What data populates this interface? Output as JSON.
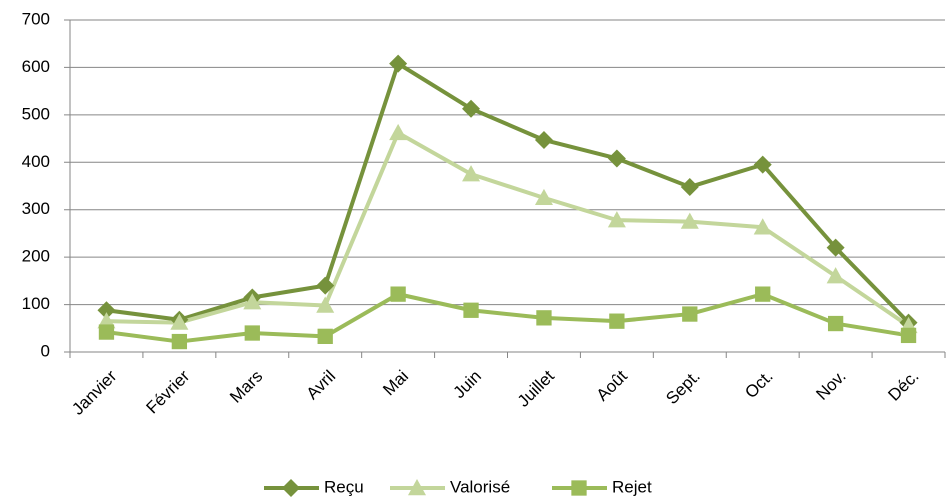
{
  "chart_data": {
    "type": "line",
    "categories": [
      "Janvier",
      "Février",
      "Mars",
      "Avril",
      "Mai",
      "Juin",
      "Juillet",
      "Août",
      "Sept.",
      "Oct.",
      "Nov.",
      "Déc."
    ],
    "series": [
      {
        "name": "Reçu",
        "color": "#76923c",
        "marker": "diamond",
        "values": [
          88,
          68,
          115,
          140,
          608,
          513,
          447,
          408,
          348,
          395,
          220,
          62
        ]
      },
      {
        "name": "Valorisé",
        "color": "#c3d69b",
        "marker": "triangle",
        "values": [
          65,
          62,
          105,
          98,
          462,
          375,
          325,
          278,
          275,
          263,
          160,
          55
        ]
      },
      {
        "name": "Rejet",
        "color": "#9bbb59",
        "marker": "square",
        "values": [
          42,
          22,
          40,
          33,
          122,
          88,
          72,
          65,
          80,
          122,
          60,
          35
        ]
      }
    ],
    "ylim": [
      0,
      700
    ],
    "yticks": [
      0,
      100,
      200,
      300,
      400,
      500,
      600,
      700
    ],
    "grid": true,
    "legend": "bottom"
  }
}
